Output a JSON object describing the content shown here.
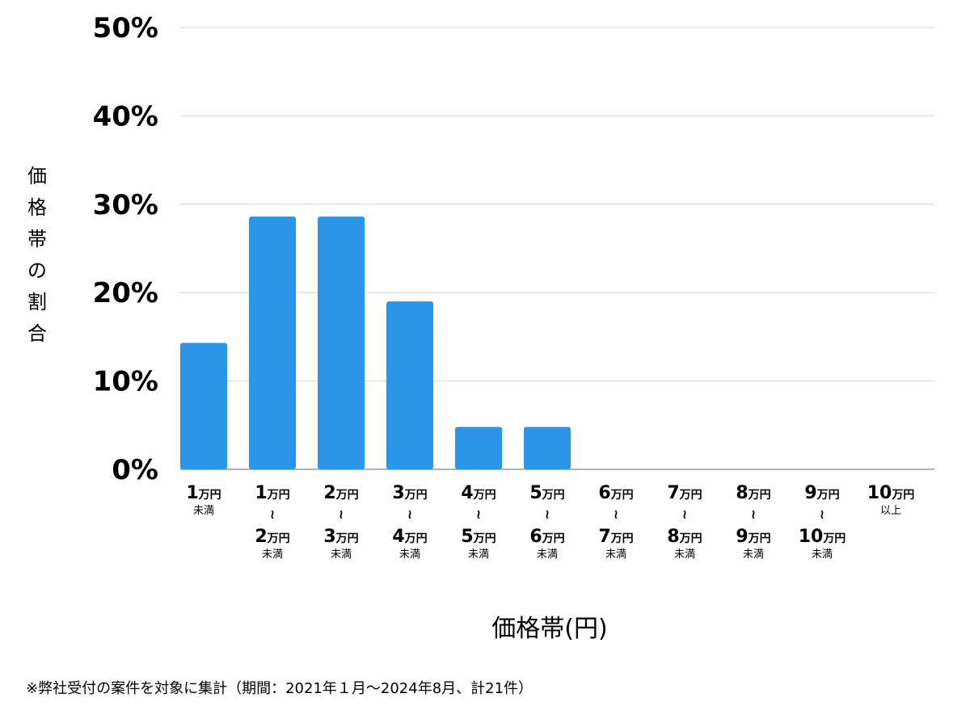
{
  "chart_data": {
    "type": "bar",
    "ylabel": "価格帯の割合",
    "xlabel": "価格帯(円)",
    "ylim": [
      0,
      50
    ],
    "yticks": [
      "0%",
      "10%",
      "20%",
      "30%",
      "40%",
      "50%"
    ],
    "ytick_values": [
      0,
      10,
      20,
      30,
      40,
      50
    ],
    "grid": true,
    "bar_color": "#2b95e8",
    "categories": [
      {
        "from": "1",
        "from_unit": "万円",
        "to": "",
        "to_unit": "",
        "suffix": "未満"
      },
      {
        "from": "1",
        "from_unit": "万円",
        "to": "2",
        "to_unit": "万円",
        "suffix": "未満"
      },
      {
        "from": "2",
        "from_unit": "万円",
        "to": "3",
        "to_unit": "万円",
        "suffix": "未満"
      },
      {
        "from": "3",
        "from_unit": "万円",
        "to": "4",
        "to_unit": "万円",
        "suffix": "未満"
      },
      {
        "from": "4",
        "from_unit": "万円",
        "to": "5",
        "to_unit": "万円",
        "suffix": "未満"
      },
      {
        "from": "5",
        "from_unit": "万円",
        "to": "6",
        "to_unit": "万円",
        "suffix": "未満"
      },
      {
        "from": "6",
        "from_unit": "万円",
        "to": "7",
        "to_unit": "万円",
        "suffix": "未満"
      },
      {
        "from": "7",
        "from_unit": "万円",
        "to": "8",
        "to_unit": "万円",
        "suffix": "未満"
      },
      {
        "from": "8",
        "from_unit": "万円",
        "to": "9",
        "to_unit": "万円",
        "suffix": "未満"
      },
      {
        "from": "9",
        "from_unit": "万円",
        "to": "10",
        "to_unit": "万円",
        "suffix": "未満"
      },
      {
        "from": "10",
        "from_unit": "万円",
        "to": "",
        "to_unit": "",
        "suffix": "以上"
      }
    ],
    "range_symbol": "≀",
    "values": [
      14.3,
      28.6,
      28.6,
      19.0,
      4.8,
      4.8,
      0,
      0,
      0,
      0,
      0
    ]
  },
  "footnote": "※弊社受付の案件を対象に集計（期間：2021年１月〜2024年8月、計21件）"
}
